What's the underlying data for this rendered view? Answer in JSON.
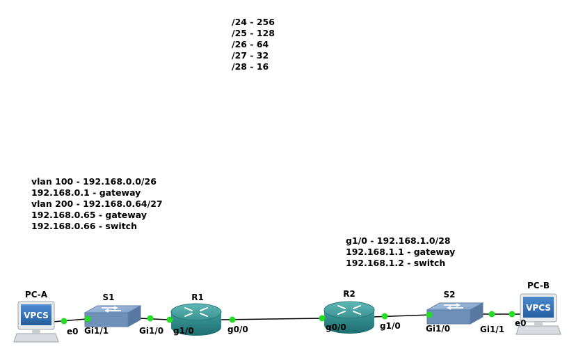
{
  "notes": {
    "subnet_masks": [
      "/24 - 256",
      "/25 - 128",
      "/26 - 64",
      "/27 - 32",
      "/28 - 16"
    ],
    "s1_vlans": [
      "vlan 100 - 192.168.0.0/26",
      "192.168.0.1 - gateway",
      "vlan 200 - 192.168.0.64/27",
      "192.168.0.65 - gateway",
      "192.168.0.66 - switch"
    ],
    "r2_network": [
      "g1/0 - 192.168.1.0/28",
      "192.168.1.1 - gateway",
      "192.168.1.2 - switch"
    ]
  },
  "devices": {
    "pc_a": {
      "label": "PC-A",
      "badge": "VPCS",
      "icon": "vpcs-computer-icon"
    },
    "s1": {
      "label": "S1",
      "icon": "switch-icon"
    },
    "r1": {
      "label": "R1",
      "icon": "router-icon"
    },
    "r2": {
      "label": "R2",
      "icon": "router-icon"
    },
    "s2": {
      "label": "S2",
      "icon": "switch-icon"
    },
    "pc_b": {
      "label": "PC-B",
      "badge": "VPCS",
      "icon": "vpcs-computer-icon"
    }
  },
  "links": [
    {
      "from": "PC-A",
      "to": "S1",
      "from_port": "e0",
      "to_port": "Gi1/1"
    },
    {
      "from": "S1",
      "to": "R1",
      "from_port": "Gi1/0",
      "to_port": "g1/0"
    },
    {
      "from": "R1",
      "to": "R2",
      "from_port": "g0/0",
      "to_port": "g0/0"
    },
    {
      "from": "R2",
      "to": "S2",
      "from_port": "g1/0",
      "to_port": "Gi1/0"
    },
    {
      "from": "S2",
      "to": "PC-B",
      "from_port": "Gi1/1",
      "to_port": "e0"
    }
  ],
  "colors": {
    "link_status": "#22dd22",
    "router_teal": "#2f8d8d",
    "switch_blue": "#7d9fc6",
    "vpcs_badge": "#2c6fb8"
  }
}
